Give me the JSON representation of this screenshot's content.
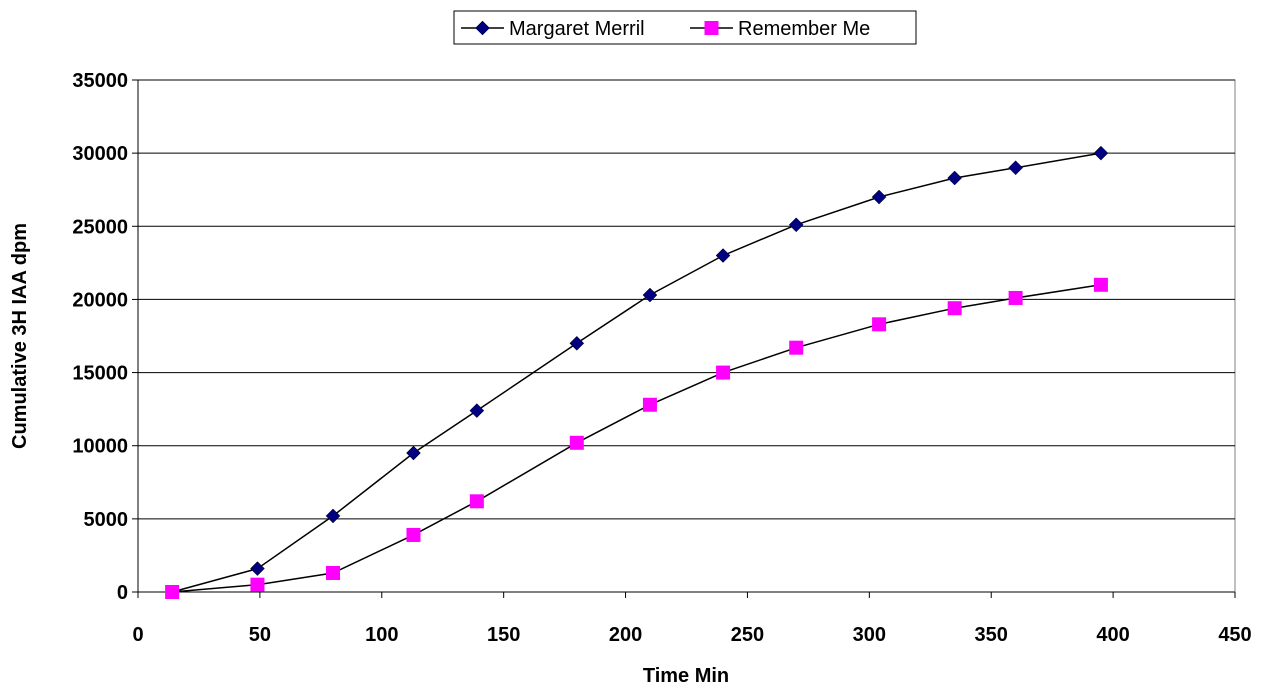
{
  "chart_data": {
    "type": "line",
    "title": "",
    "xlabel": "Time Min",
    "ylabel": "Cumulative 3H IAA dpm",
    "xlim": [
      0,
      450
    ],
    "ylim": [
      0,
      35000
    ],
    "x_ticks": [
      0,
      50,
      100,
      150,
      200,
      250,
      300,
      350,
      400,
      450
    ],
    "y_ticks": [
      0,
      5000,
      10000,
      15000,
      20000,
      25000,
      30000,
      35000
    ],
    "grid": "horizontal major gridlines",
    "legend_position": "top",
    "series": [
      {
        "name": "Margaret Merril",
        "marker": "diamond",
        "color": "#000080",
        "x": [
          14,
          49,
          80,
          113,
          139,
          180,
          210,
          240,
          270,
          304,
          335,
          360,
          395
        ],
        "y": [
          0,
          1600,
          5200,
          9500,
          12400,
          17000,
          20300,
          23000,
          25100,
          27000,
          28300,
          29000,
          30000
        ]
      },
      {
        "name": "Remember Me",
        "marker": "square",
        "color": "#ff00ff",
        "x": [
          14,
          49,
          80,
          113,
          139,
          180,
          210,
          240,
          270,
          304,
          335,
          360,
          395
        ],
        "y": [
          0,
          500,
          1300,
          3900,
          6200,
          10200,
          12800,
          15000,
          16700,
          18300,
          19400,
          20100,
          21000
        ]
      }
    ]
  }
}
